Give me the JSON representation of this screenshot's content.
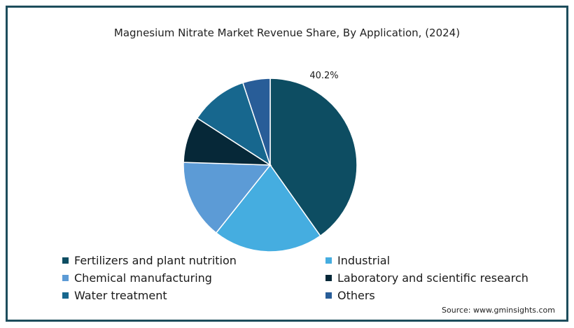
{
  "chart_data": {
    "type": "pie",
    "title": "Magnesium Nitrate Market Revenue Share, By Application, (2024)",
    "slices": [
      {
        "name": "Fertilizers and plant nutrition",
        "value": 40.2,
        "color": "#0d4d62",
        "label": "40.2%"
      },
      {
        "name": "Industrial",
        "value": 20.5,
        "color": "#45ade0",
        "label": ""
      },
      {
        "name": "Chemical manufacturing",
        "value": 14.8,
        "color": "#5c9bd6",
        "label": ""
      },
      {
        "name": "Laboratory and scientific research",
        "value": 8.6,
        "color": "#062838",
        "label": ""
      },
      {
        "name": "Water treatment",
        "value": 10.8,
        "color": "#17678e",
        "label": ""
      },
      {
        "name": "Others",
        "value": 5.1,
        "color": "#285d98",
        "label": ""
      }
    ],
    "start_angle_deg": 0,
    "direction": "clockwise",
    "legend_placement": "bottom"
  },
  "source": "Source: www.gminsights.com"
}
